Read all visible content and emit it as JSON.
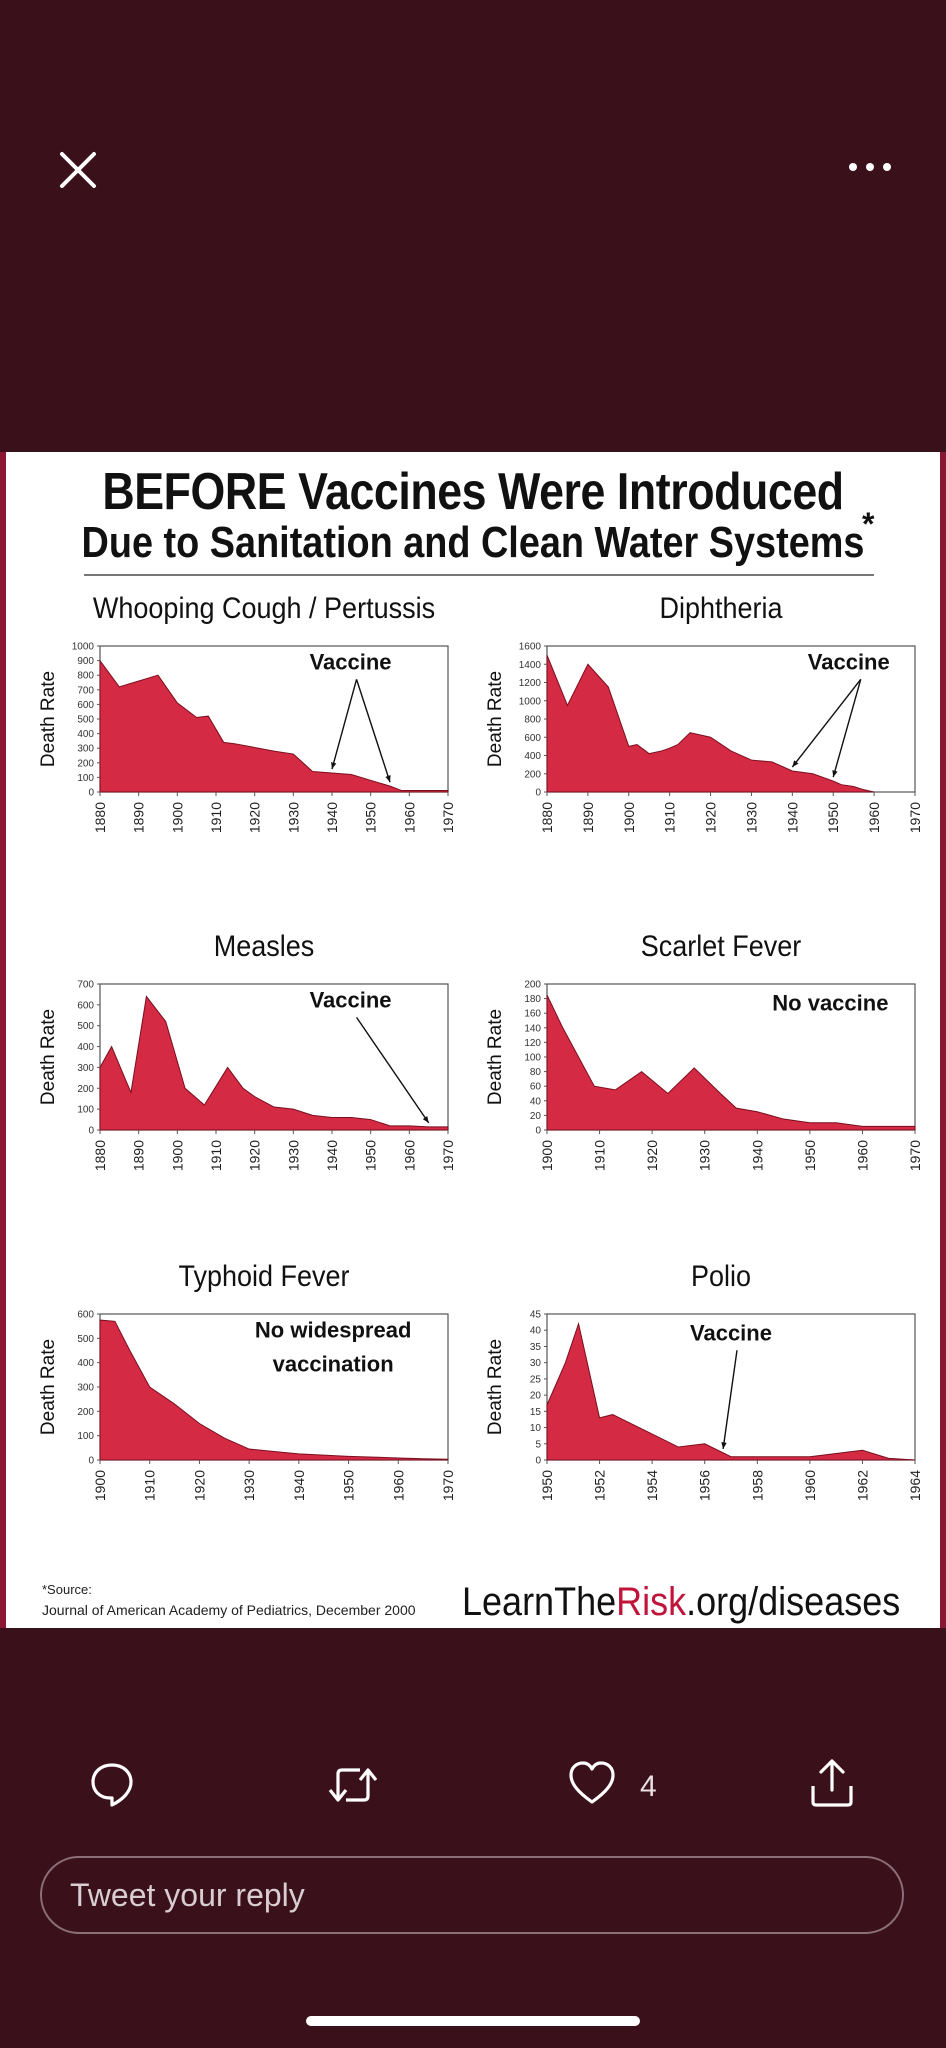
{
  "icons": {
    "close": "close-icon",
    "more": "more-icon",
    "reply": "reply-icon",
    "retweet": "retweet-icon",
    "like": "heart-icon",
    "share": "share-icon"
  },
  "colors": {
    "background": "#3a101b",
    "area_fill": "#d42a44",
    "accent": "#c0143a"
  },
  "poster": {
    "title_line1": "BEFORE Vaccines Were Introduced",
    "title_line2": "Due to Sanitation and Clean Water Systems",
    "asterisk": "*",
    "source_line1": "*Source:",
    "source_line2": "Journal of American Academy of Pediatrics, December 2000",
    "brand_prefix": "LearnThe",
    "brand_highlight": "Risk",
    "brand_suffix": ".org/diseases"
  },
  "chart_data": [
    {
      "type": "area",
      "title": "Whooping Cough / Pertussis",
      "ylabel": "Death Rate",
      "ylim": [
        0,
        1000
      ],
      "yticks": [
        0,
        100,
        200,
        300,
        400,
        500,
        600,
        700,
        800,
        900,
        1000
      ],
      "xlim": [
        1880,
        1970
      ],
      "xticks": [
        1880,
        1890,
        1900,
        1910,
        1920,
        1930,
        1940,
        1950,
        1960,
        1970
      ],
      "x": [
        1880,
        1885,
        1895,
        1900,
        1905,
        1908,
        1912,
        1915,
        1925,
        1930,
        1935,
        1940,
        1945,
        1950,
        1955,
        1958,
        1960,
        1970
      ],
      "y": [
        900,
        720,
        800,
        610,
        510,
        520,
        340,
        330,
        280,
        260,
        140,
        130,
        120,
        80,
        40,
        10,
        10,
        10
      ],
      "annotation": "Vaccine",
      "arrows_to_x": [
        1940,
        1955
      ]
    },
    {
      "type": "area",
      "title": "Diphtheria",
      "ylabel": "Death Rate",
      "ylim": [
        0,
        1600
      ],
      "yticks": [
        0,
        200,
        400,
        600,
        800,
        1000,
        1200,
        1400,
        1600
      ],
      "xlim": [
        1880,
        1970
      ],
      "xticks": [
        1880,
        1890,
        1900,
        1910,
        1920,
        1930,
        1940,
        1950,
        1960,
        1970
      ],
      "x": [
        1880,
        1885,
        1890,
        1895,
        1900,
        1902,
        1905,
        1908,
        1910,
        1912,
        1915,
        1920,
        1925,
        1930,
        1935,
        1940,
        1945,
        1950,
        1952,
        1955,
        1957,
        1960
      ],
      "y": [
        1500,
        950,
        1400,
        1150,
        500,
        520,
        420,
        450,
        480,
        520,
        650,
        600,
        450,
        350,
        330,
        230,
        200,
        120,
        80,
        60,
        30,
        0
      ],
      "annotation": "Vaccine",
      "arrows_to_x": [
        1940,
        1950
      ]
    },
    {
      "type": "area",
      "title": "Measles",
      "ylabel": "Death Rate",
      "ylim": [
        0,
        700
      ],
      "yticks": [
        0,
        100,
        200,
        300,
        400,
        500,
        600,
        700
      ],
      "xlim": [
        1880,
        1970
      ],
      "xticks": [
        1880,
        1890,
        1900,
        1910,
        1920,
        1930,
        1940,
        1950,
        1960,
        1970
      ],
      "x": [
        1880,
        1883,
        1888,
        1892,
        1897,
        1902,
        1907,
        1913,
        1917,
        1920,
        1925,
        1930,
        1935,
        1940,
        1945,
        1950,
        1955,
        1960,
        1965,
        1970
      ],
      "y": [
        300,
        400,
        180,
        640,
        520,
        200,
        120,
        300,
        200,
        160,
        110,
        100,
        70,
        60,
        60,
        50,
        20,
        20,
        15,
        15
      ],
      "annotation": "Vaccine",
      "arrows_to_x": [
        1965
      ]
    },
    {
      "type": "area",
      "title": "Scarlet Fever",
      "ylabel": "Death Rate",
      "ylim": [
        0,
        200
      ],
      "yticks": [
        0,
        20,
        40,
        60,
        80,
        100,
        120,
        140,
        160,
        180,
        200
      ],
      "xlim": [
        1900,
        1970
      ],
      "xticks": [
        1900,
        1910,
        1920,
        1930,
        1940,
        1950,
        1960,
        1970
      ],
      "x": [
        1900,
        1903,
        1906,
        1909,
        1913,
        1918,
        1923,
        1928,
        1933,
        1936,
        1940,
        1945,
        1950,
        1955,
        1960,
        1965,
        1970
      ],
      "y": [
        185,
        140,
        100,
        60,
        55,
        80,
        50,
        85,
        50,
        30,
        25,
        15,
        10,
        10,
        5,
        5,
        5
      ],
      "annotation": "No vaccine",
      "arrows_to_x": []
    },
    {
      "type": "area",
      "title": "Typhoid Fever",
      "ylabel": "Death Rate",
      "ylim": [
        0,
        600
      ],
      "yticks": [
        0,
        100,
        200,
        300,
        400,
        500,
        600
      ],
      "xlim": [
        1900,
        1970
      ],
      "xticks": [
        1900,
        1910,
        1920,
        1930,
        1940,
        1950,
        1960,
        1970
      ],
      "x": [
        1900,
        1903,
        1906,
        1910,
        1915,
        1920,
        1925,
        1930,
        1935,
        1940,
        1945,
        1950,
        1955,
        1960,
        1965,
        1970
      ],
      "y": [
        575,
        570,
        450,
        300,
        230,
        150,
        90,
        45,
        35,
        25,
        20,
        15,
        12,
        8,
        5,
        3
      ],
      "annotation": "No widespread vaccination",
      "arrows_to_x": []
    },
    {
      "type": "area",
      "title": "Polio",
      "ylabel": "Death Rate",
      "ylim": [
        0,
        45
      ],
      "yticks": [
        0,
        5,
        10,
        15,
        20,
        25,
        30,
        35,
        40,
        45
      ],
      "xlim": [
        1950,
        1964
      ],
      "xticks": [
        1950,
        1952,
        1954,
        1956,
        1958,
        1960,
        1962,
        1964
      ],
      "x": [
        1950,
        1950.7,
        1951.2,
        1952,
        1952.5,
        1953,
        1955,
        1956,
        1957,
        1958,
        1959,
        1960,
        1961,
        1962,
        1963,
        1964
      ],
      "y": [
        17,
        30,
        42,
        13,
        14,
        12,
        4,
        5,
        1,
        1,
        1,
        1,
        2,
        3,
        0.5,
        0
      ],
      "annotation": "Vaccine",
      "arrows_to_x": [
        1956.7
      ]
    }
  ],
  "actions": {
    "like_count": "4"
  },
  "reply": {
    "placeholder": "Tweet your reply"
  }
}
